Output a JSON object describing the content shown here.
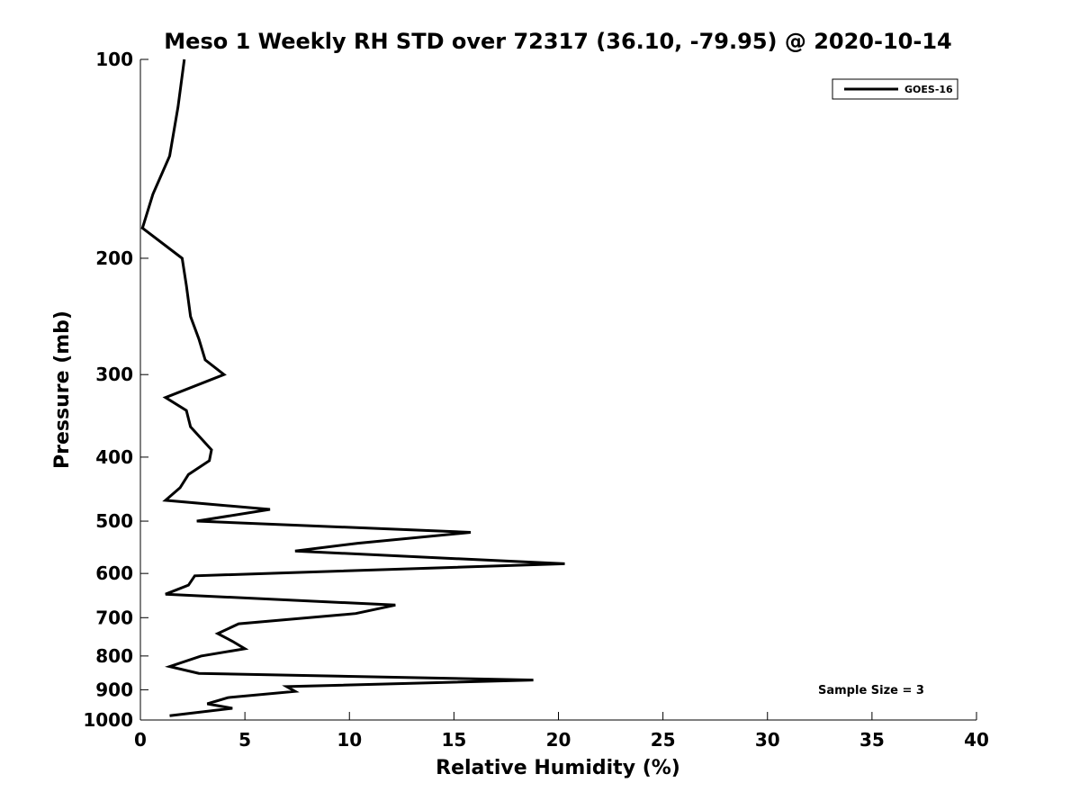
{
  "chart_data": {
    "type": "line",
    "title": "Meso 1 Weekly RH STD over 72317 (36.10, -79.95) @ 2020-10-14",
    "xlabel": "Relative Humidity (%)",
    "ylabel": "Pressure (mb)",
    "xlim": [
      0,
      40
    ],
    "ylim": [
      100,
      1000
    ],
    "y_scale": "log",
    "y_reversed": true,
    "x_ticks": [
      0,
      5,
      10,
      15,
      20,
      25,
      30,
      35,
      40
    ],
    "y_ticks": [
      100,
      200,
      300,
      400,
      500,
      600,
      700,
      800,
      900,
      1000
    ],
    "grid": false,
    "legend_position": "top-right",
    "annotation": "Sample Size = 3",
    "series": [
      {
        "name": "GOES-16",
        "color": "#000000",
        "x": [
          2.1,
          1.8,
          1.4,
          0.6,
          0.1,
          2.0,
          2.2,
          2.4,
          2.8,
          3.1,
          4.0,
          1.2,
          2.2,
          2.4,
          3.4,
          3.3,
          2.3,
          1.9,
          1.2,
          6.2,
          2.7,
          15.8,
          10.4,
          7.4,
          20.3,
          2.6,
          2.3,
          1.2,
          12.2,
          10.3,
          4.7,
          3.7,
          4.4,
          5.0,
          2.9,
          1.4,
          2.8,
          18.8,
          7.0,
          7.4,
          4.2,
          3.2,
          4.4,
          1.4
        ],
        "y": [
          100,
          118,
          140,
          160,
          180,
          200,
          220,
          245,
          265,
          285,
          300,
          325,
          340,
          360,
          390,
          405,
          425,
          445,
          465,
          480,
          500,
          520,
          540,
          555,
          580,
          605,
          625,
          645,
          670,
          690,
          715,
          740,
          760,
          780,
          800,
          830,
          850,
          870,
          890,
          905,
          925,
          945,
          960,
          985
        ]
      }
    ]
  }
}
